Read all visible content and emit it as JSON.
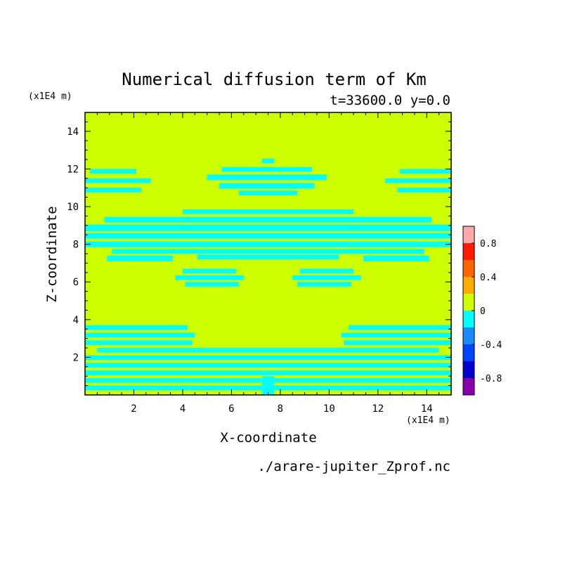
{
  "chart_data": {
    "type": "heatmap",
    "title": "Numerical diffusion term of Km",
    "subtitle": "t=33600.0 y=0.0",
    "xlabel": "X-coordinate",
    "ylabel": "Z-coordinate",
    "x_unit": "(x1E4 m)",
    "y_unit": "(x1E4 m)",
    "source_file": "./arare-jupiter_Zprof.nc",
    "xlim": [
      0,
      15
    ],
    "ylim": [
      0,
      15
    ],
    "x_ticks": [
      "2",
      "4",
      "6",
      "8",
      "10",
      "12",
      "14"
    ],
    "y_ticks": [
      "2",
      "4",
      "6",
      "8",
      "10",
      "12",
      "14"
    ],
    "colorbar": {
      "range": [
        -1.0,
        1.0
      ],
      "tick_labels": [
        "-0.8",
        "-0.4",
        "0",
        "0.4",
        "0.8"
      ],
      "tick_values": [
        -0.8,
        -0.4,
        0,
        0.4,
        0.8
      ],
      "levels": [
        {
          "from": -1.0,
          "to": -0.8,
          "color": "#8800aa"
        },
        {
          "from": -0.8,
          "to": -0.6,
          "color": "#0000cc"
        },
        {
          "from": -0.6,
          "to": -0.4,
          "color": "#0044ff"
        },
        {
          "from": -0.4,
          "to": -0.2,
          "color": "#1a8cff"
        },
        {
          "from": -0.2,
          "to": 0.0,
          "color": "#00ffff"
        },
        {
          "from": 0.0,
          "to": 0.2,
          "color": "#ccff00"
        },
        {
          "from": 0.2,
          "to": 0.4,
          "color": "#ffaa00"
        },
        {
          "from": 0.4,
          "to": 0.6,
          "color": "#ff6600"
        },
        {
          "from": 0.6,
          "to": 0.8,
          "color": "#ff1a00"
        },
        {
          "from": 0.8,
          "to": 1.0,
          "color": "#ffaaaa"
        }
      ]
    },
    "background_level": {
      "value": 0.1,
      "color": "#ccff00"
    },
    "negative_level": {
      "value": -0.1,
      "color": "#00ffff"
    },
    "negative_regions": [
      {
        "z": [
          11.75,
          12.0
        ],
        "x": [
          0.2,
          2.1
        ]
      },
      {
        "z": [
          11.25,
          11.5
        ],
        "x": [
          0.0,
          2.7
        ]
      },
      {
        "z": [
          10.75,
          11.0
        ],
        "x": [
          0.0,
          2.3
        ]
      },
      {
        "z": [
          11.75,
          12.0
        ],
        "x": [
          12.9,
          15.0
        ]
      },
      {
        "z": [
          11.25,
          11.5
        ],
        "x": [
          12.3,
          15.0
        ]
      },
      {
        "z": [
          10.75,
          11.0
        ],
        "x": [
          12.8,
          15.0
        ]
      },
      {
        "z": [
          12.3,
          12.55
        ],
        "x": [
          7.25,
          7.75
        ]
      },
      {
        "z": [
          11.85,
          12.1
        ],
        "x": [
          5.6,
          9.3
        ]
      },
      {
        "z": [
          11.4,
          11.7
        ],
        "x": [
          5.0,
          9.9
        ]
      },
      {
        "z": [
          10.95,
          11.25
        ],
        "x": [
          5.5,
          9.4
        ]
      },
      {
        "z": [
          10.6,
          10.85
        ],
        "x": [
          6.3,
          8.7
        ]
      },
      {
        "z": [
          9.6,
          9.85
        ],
        "x": [
          4.0,
          11.0
        ]
      },
      {
        "z": [
          9.15,
          9.45
        ],
        "x": [
          0.8,
          14.2
        ]
      },
      {
        "z": [
          8.7,
          9.05
        ],
        "x": [
          0.0,
          15.0
        ]
      },
      {
        "z": [
          8.3,
          8.6
        ],
        "x": [
          0.0,
          15.0
        ]
      },
      {
        "z": [
          7.85,
          8.15
        ],
        "x": [
          0.0,
          15.0
        ]
      },
      {
        "z": [
          7.5,
          7.75
        ],
        "x": [
          1.1,
          13.9
        ]
      },
      {
        "z": [
          7.1,
          7.4
        ],
        "x": [
          0.9,
          3.6
        ]
      },
      {
        "z": [
          7.1,
          7.4
        ],
        "x": [
          11.4,
          14.1
        ]
      },
      {
        "z": [
          7.2,
          7.45
        ],
        "x": [
          4.6,
          10.4
        ]
      },
      {
        "z": [
          6.45,
          6.7
        ],
        "x": [
          4.0,
          6.2
        ]
      },
      {
        "z": [
          6.1,
          6.35
        ],
        "x": [
          3.7,
          6.5
        ]
      },
      {
        "z": [
          5.75,
          6.0
        ],
        "x": [
          4.1,
          6.3
        ]
      },
      {
        "z": [
          6.45,
          6.7
        ],
        "x": [
          8.8,
          11.0
        ]
      },
      {
        "z": [
          6.1,
          6.35
        ],
        "x": [
          8.5,
          11.3
        ]
      },
      {
        "z": [
          5.75,
          6.0
        ],
        "x": [
          8.7,
          10.9
        ]
      },
      {
        "z": [
          3.45,
          3.7
        ],
        "x": [
          0.0,
          4.2
        ]
      },
      {
        "z": [
          3.05,
          3.3
        ],
        "x": [
          0.0,
          4.5
        ]
      },
      {
        "z": [
          2.65,
          2.9
        ],
        "x": [
          0.0,
          4.4
        ]
      },
      {
        "z": [
          3.45,
          3.7
        ],
        "x": [
          10.8,
          15.0
        ]
      },
      {
        "z": [
          3.05,
          3.3
        ],
        "x": [
          10.5,
          15.0
        ]
      },
      {
        "z": [
          2.65,
          2.9
        ],
        "x": [
          10.6,
          15.0
        ]
      },
      {
        "z": [
          2.25,
          2.5
        ],
        "x": [
          0.5,
          14.5
        ]
      },
      {
        "z": [
          1.85,
          2.1
        ],
        "x": [
          0.0,
          15.0
        ]
      },
      {
        "z": [
          1.45,
          1.7
        ],
        "x": [
          0.0,
          15.0
        ]
      },
      {
        "z": [
          1.05,
          1.3
        ],
        "x": [
          0.0,
          15.0
        ]
      },
      {
        "z": [
          0.65,
          0.9
        ],
        "x": [
          0.0,
          15.0
        ]
      },
      {
        "z": [
          0.25,
          0.5
        ],
        "x": [
          0.0,
          15.0
        ]
      },
      {
        "z": [
          0.0,
          1.0
        ],
        "x": [
          7.25,
          7.75
        ]
      }
    ]
  }
}
